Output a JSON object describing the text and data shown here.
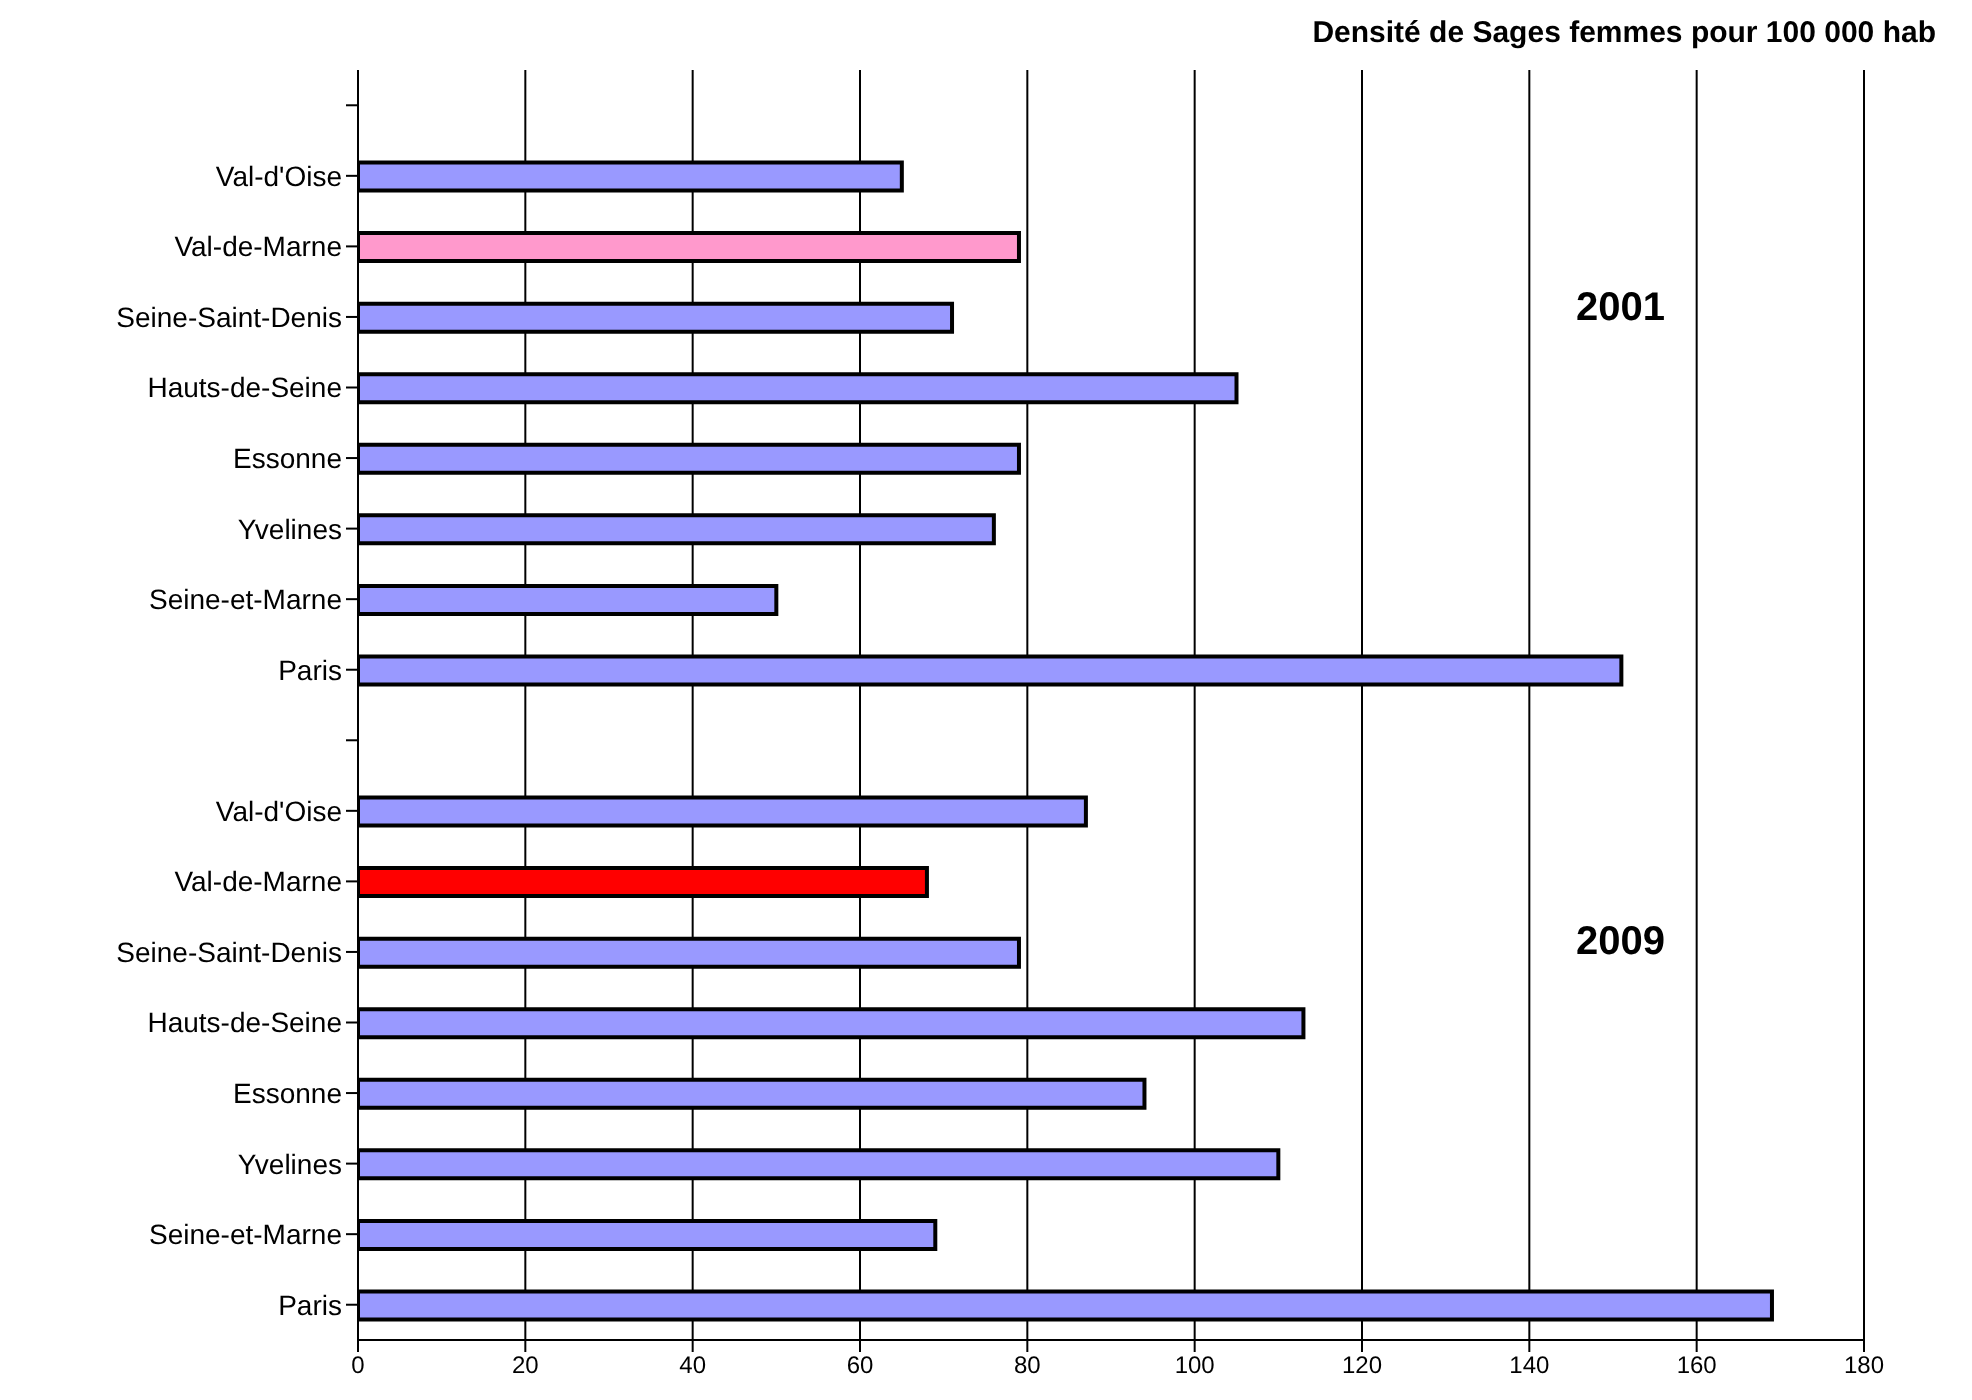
{
  "chart_data": {
    "type": "bar",
    "orientation": "horizontal",
    "title": "Densité de Sages femmes pour 100 000 hab",
    "categories": [
      null,
      "Val-d'Oise",
      "Val-de-Marne",
      "Seine-Saint-Denis",
      "Hauts-de-Seine",
      "Essonne",
      "Yvelines",
      "Seine-et-Marne",
      "Paris",
      null,
      "Val-d'Oise",
      "Val-de-Marne",
      "Seine-Saint-Denis",
      "Hauts-de-Seine",
      "Essonne",
      "Yvelines",
      "Seine-et-Marne",
      "Paris"
    ],
    "values": [
      null,
      65,
      79,
      71,
      105,
      79,
      76,
      50,
      151,
      null,
      87,
      68,
      79,
      113,
      94,
      110,
      69,
      169
    ],
    "colors": [
      "#9999ff",
      "#9999ff",
      "#ff99cc",
      "#9999ff",
      "#9999ff",
      "#9999ff",
      "#9999ff",
      "#9999ff",
      "#9999ff",
      "#9999ff",
      "#9999ff",
      "#ff0000",
      "#9999ff",
      "#9999ff",
      "#9999ff",
      "#9999ff",
      "#9999ff",
      "#9999ff"
    ],
    "xlim": [
      0,
      180
    ],
    "xticks": [
      0,
      20,
      40,
      60,
      80,
      100,
      120,
      140,
      160,
      180
    ],
    "grid": "x",
    "annotations": [
      "2001",
      "2009"
    ]
  }
}
